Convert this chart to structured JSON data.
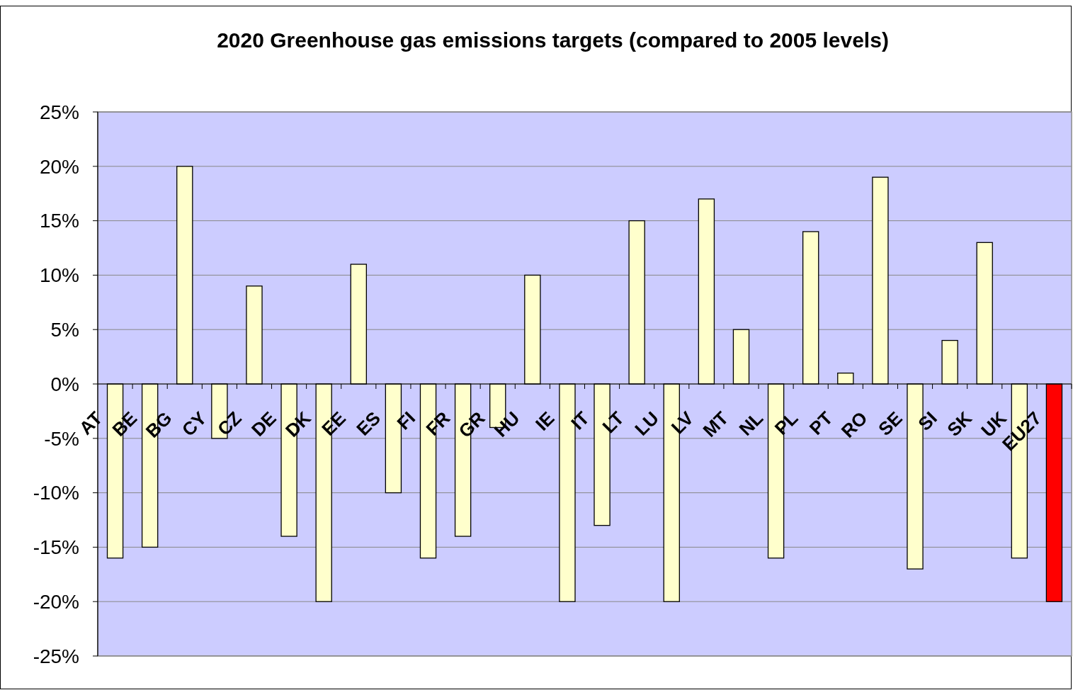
{
  "chart_data": {
    "type": "bar",
    "title": "2020 Greenhouse gas emissions targets (compared to 2005 levels)",
    "categories": [
      "AT",
      "BE",
      "BG",
      "CY",
      "CZ",
      "DE",
      "DK",
      "EE",
      "ES",
      "FI",
      "FR",
      "GR",
      "HU",
      "IE",
      "IT",
      "LT",
      "LU",
      "LV",
      "MT",
      "NL",
      "PL",
      "PT",
      "RO",
      "SE",
      "SI",
      "SK",
      "UK",
      "EU27"
    ],
    "values": [
      -16,
      -15,
      20,
      -5,
      9,
      -14,
      -20,
      11,
      -10,
      -16,
      -14,
      -4,
      10,
      -20,
      -13,
      15,
      -20,
      17,
      5,
      -16,
      14,
      1,
      19,
      -17,
      4,
      13,
      -16,
      -20
    ],
    "colors": [
      "#ffffcc",
      "#ffffcc",
      "#ffffcc",
      "#ffffcc",
      "#ffffcc",
      "#ffffcc",
      "#ffffcc",
      "#ffffcc",
      "#ffffcc",
      "#ffffcc",
      "#ffffcc",
      "#ffffcc",
      "#ffffcc",
      "#ffffcc",
      "#ffffcc",
      "#ffffcc",
      "#ffffcc",
      "#ffffcc",
      "#ffffcc",
      "#ffffcc",
      "#ffffcc",
      "#ffffcc",
      "#ffffcc",
      "#ffffcc",
      "#ffffcc",
      "#ffffcc",
      "#ffffcc",
      "#ff0000"
    ],
    "ylim": [
      -25,
      25
    ],
    "yticks": [
      {
        "value": -25,
        "label": "-25%"
      },
      {
        "value": -20,
        "label": "-20%"
      },
      {
        "value": -15,
        "label": "-15%"
      },
      {
        "value": -10,
        "label": "-10%"
      },
      {
        "value": -5,
        "label": "-5%"
      },
      {
        "value": 0,
        "label": "0%"
      },
      {
        "value": 5,
        "label": "5%"
      },
      {
        "value": 10,
        "label": "10%"
      },
      {
        "value": 15,
        "label": "15%"
      },
      {
        "value": 20,
        "label": "20%"
      },
      {
        "value": 25,
        "label": "25%"
      }
    ],
    "grid": "y"
  }
}
